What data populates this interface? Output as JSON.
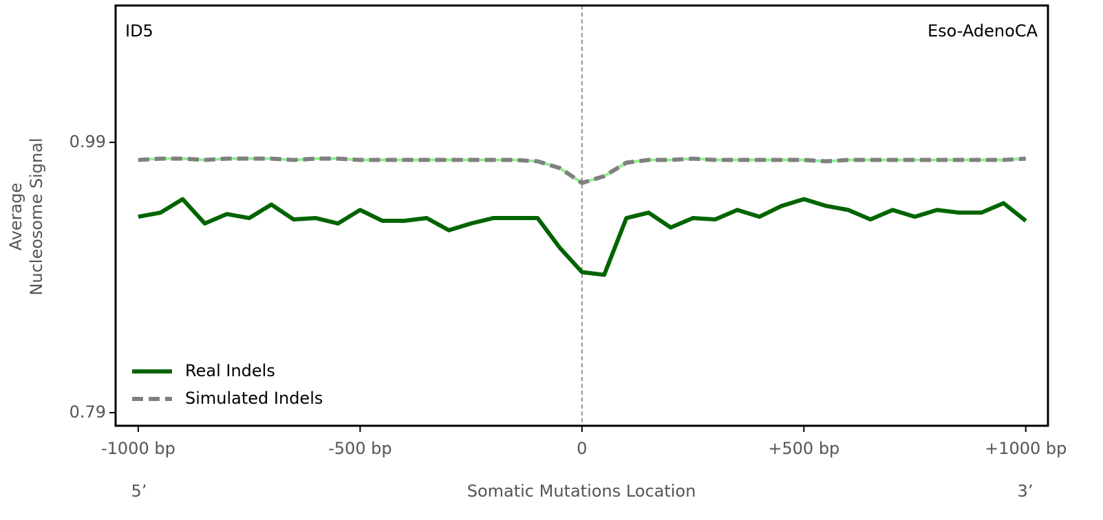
{
  "chart_data": {
    "type": "line",
    "annotations": {
      "top_left": "ID5",
      "top_right": "Eso-AdenoCA",
      "left_end": "5’",
      "right_end": "3’"
    },
    "xlabel": "Somatic Mutations Location",
    "ylabel": [
      "Average",
      "Nucleosome Signal"
    ],
    "x": [
      -1000,
      -950,
      -900,
      -850,
      -800,
      -750,
      -700,
      -650,
      -600,
      -550,
      -500,
      -450,
      -400,
      -350,
      -300,
      -250,
      -200,
      -150,
      -100,
      -50,
      0,
      50,
      100,
      150,
      200,
      250,
      300,
      350,
      400,
      450,
      500,
      550,
      600,
      650,
      700,
      750,
      800,
      850,
      900,
      950,
      1000
    ],
    "series": [
      {
        "name": "Real Indels",
        "color": "#006400",
        "values": [
          0.935,
          0.938,
          0.948,
          0.93,
          0.937,
          0.934,
          0.944,
          0.933,
          0.934,
          0.93,
          0.94,
          0.932,
          0.932,
          0.934,
          0.925,
          0.93,
          0.934,
          0.934,
          0.934,
          0.912,
          0.894,
          0.892,
          0.934,
          0.938,
          0.927,
          0.934,
          0.933,
          0.94,
          0.935,
          0.943,
          0.948,
          0.943,
          0.94,
          0.933,
          0.94,
          0.935,
          0.94,
          0.938,
          0.938,
          0.945,
          0.932
        ]
      },
      {
        "name": "Simulated Indels",
        "color": "#808080",
        "dash": true,
        "underlay_color": "#90ee90",
        "values": [
          0.977,
          0.978,
          0.978,
          0.977,
          0.978,
          0.978,
          0.978,
          0.977,
          0.978,
          0.978,
          0.977,
          0.977,
          0.977,
          0.977,
          0.977,
          0.977,
          0.977,
          0.977,
          0.976,
          0.971,
          0.96,
          0.965,
          0.975,
          0.977,
          0.977,
          0.978,
          0.977,
          0.977,
          0.977,
          0.977,
          0.977,
          0.976,
          0.977,
          0.977,
          0.977,
          0.977,
          0.977,
          0.977,
          0.977,
          0.977,
          0.978
        ]
      }
    ],
    "xlim": [
      -1051,
      1050
    ],
    "ylim": [
      0.7803,
      1.0913
    ],
    "xticks": [
      {
        "value": -1000,
        "label": "-1000 bp"
      },
      {
        "value": -500,
        "label": "-500 bp"
      },
      0,
      {
        "value": 500,
        "label": "+500 bp"
      },
      {
        "value": 1000,
        "label": "+1000 bp"
      }
    ],
    "yticks": [
      0.79,
      0.99
    ],
    "vline": 0,
    "legend": "lower left"
  }
}
